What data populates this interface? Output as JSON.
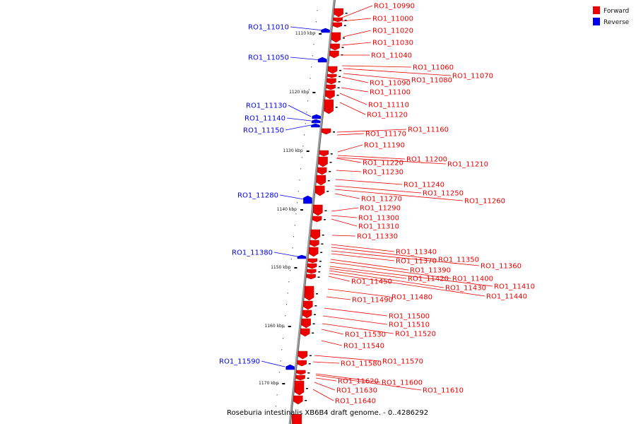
{
  "caption": "Roseburia intestinalis XB6B4 draft genome. - 0..4286292",
  "legend": [
    {
      "label": "Forward",
      "color": "#ee0000"
    },
    {
      "label": "Reverse",
      "color": "#0000ee"
    }
  ],
  "colors": {
    "forward": "#ee0000",
    "reverse": "#0000ee",
    "axis": "#808080"
  },
  "ticks": [
    "1110 kbp",
    "1120 kbp",
    "1130 kbp",
    "1140 kbp",
    "1150 kbp",
    "1160 kbp",
    "1170 kbp"
  ],
  "reverse_genes": [
    "RO1_11010",
    "RO1_11050",
    "RO1_11130",
    "RO1_11140",
    "RO1_11150",
    "RO1_11280",
    "RO1_11380",
    "RO1_11590"
  ],
  "forward_genes": [
    "RO1_10990",
    "RO1_11000",
    "RO1_11020",
    "RO1_11030",
    "RO1_11040",
    "RO1_11060",
    "RO1_11070",
    "RO1_11080",
    "RO1_11090",
    "RO1_11100",
    "RO1_11110",
    "RO1_11120",
    "RO1_11160",
    "RO1_11170",
    "RO1_11190",
    "RO1_11200",
    "RO1_11210",
    "RO1_11220",
    "RO1_11230",
    "RO1_11240",
    "RO1_11250",
    "RO1_11260",
    "RO1_11270",
    "RO1_11290",
    "RO1_11300",
    "RO1_11310",
    "RO1_11330",
    "RO1_11340",
    "RO1_11350",
    "RO1_11360",
    "RO1_11370",
    "RO1_11390",
    "RO1_11400",
    "RO1_11410",
    "RO1_11420",
    "RO1_11430",
    "RO1_11440",
    "RO1_11450",
    "RO1_11480",
    "RO1_11490",
    "RO1_11500",
    "RO1_11510",
    "RO1_11520",
    "RO1_11530",
    "RO1_11540",
    "RO1_11570",
    "RO1_11580",
    "RO1_11600",
    "RO1_11610",
    "RO1_11620",
    "RO1_11630",
    "RO1_11640"
  ]
}
